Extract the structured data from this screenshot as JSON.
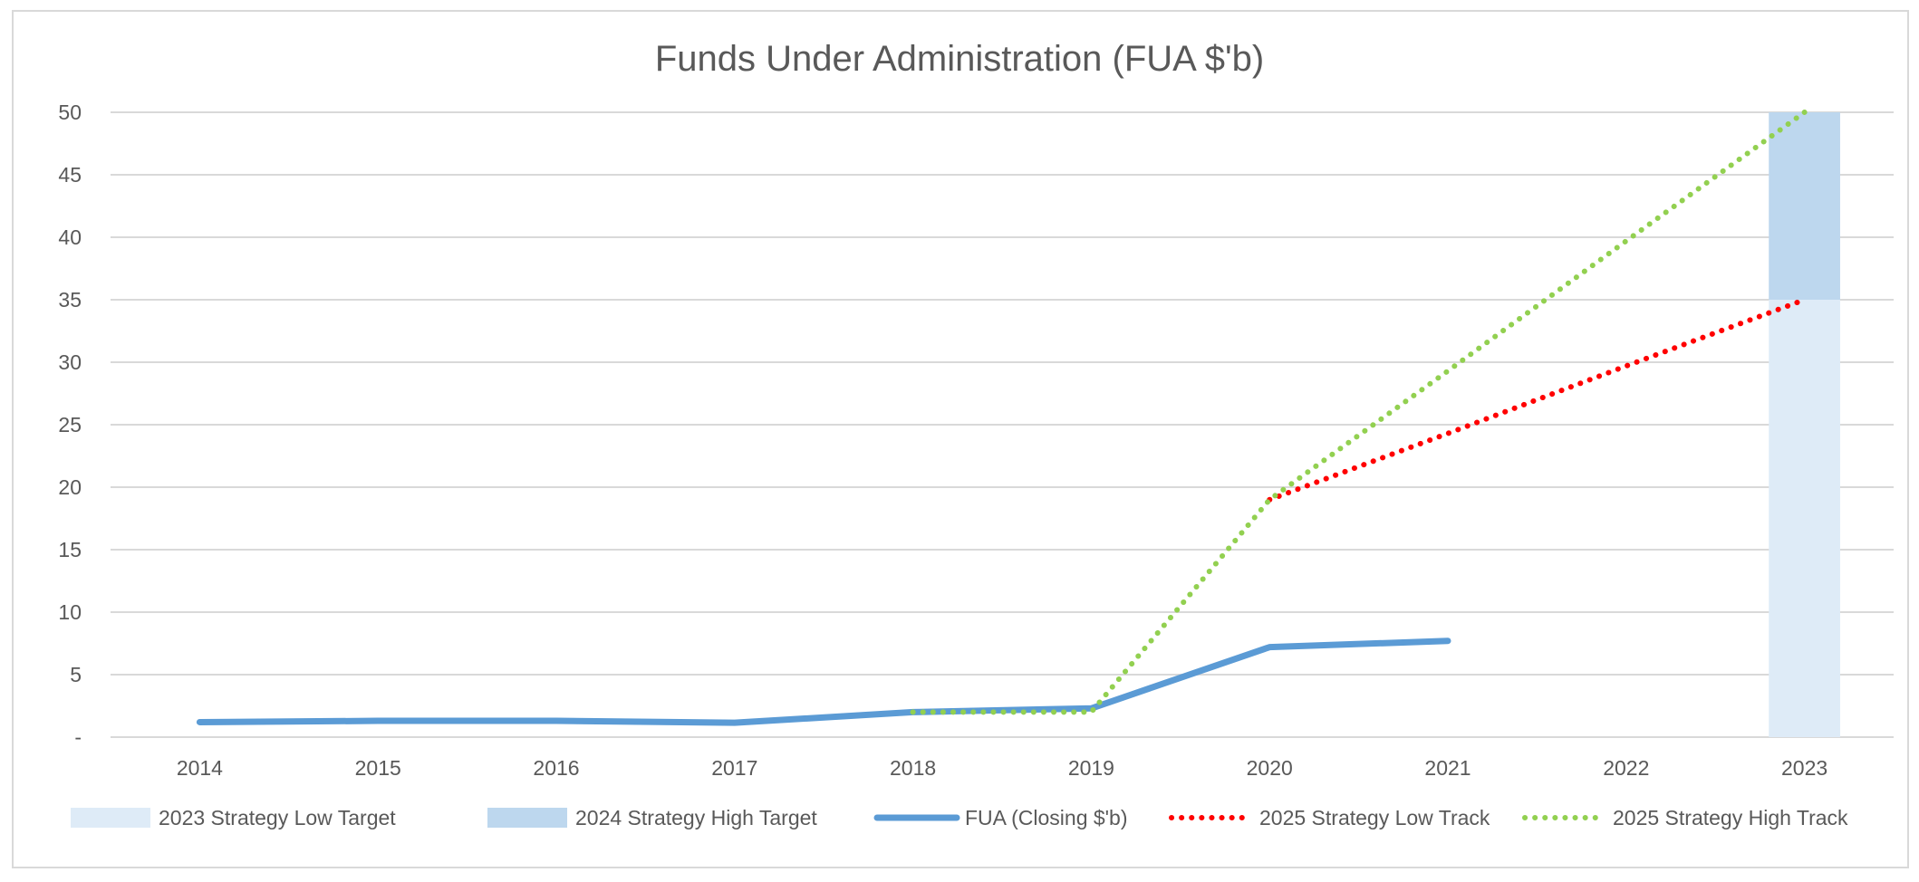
{
  "chart_data": {
    "type": "line",
    "title": "Funds Under Administration (FUA $'b)",
    "xlabel": "",
    "ylabel": "",
    "categories": [
      "2014",
      "2015",
      "2016",
      "2017",
      "2018",
      "2019",
      "2020",
      "2021",
      "2022",
      "2023"
    ],
    "ylim": [
      0,
      50
    ],
    "yticks": [
      0,
      5,
      10,
      15,
      20,
      25,
      30,
      35,
      40,
      45,
      50
    ],
    "ytick_labels": [
      "-",
      "5",
      "10",
      "15",
      "20",
      "25",
      "30",
      "35",
      "40",
      "45",
      "50"
    ],
    "grid": true,
    "legend_position": "bottom",
    "series": [
      {
        "name": "2023 Strategy Low Target",
        "kind": "bar",
        "color": "#DEEBF7",
        "values": [
          null,
          null,
          null,
          null,
          null,
          null,
          null,
          null,
          null,
          35
        ]
      },
      {
        "name": "2024 Strategy High Target",
        "kind": "bar-stacked",
        "color": "#BDD7EE",
        "values": [
          null,
          null,
          null,
          null,
          null,
          null,
          null,
          null,
          null,
          15
        ]
      },
      {
        "name": "FUA (Closing $'b)",
        "kind": "line",
        "color": "#5B9BD5",
        "values": [
          1.2,
          1.3,
          1.3,
          1.15,
          2.0,
          2.3,
          7.2,
          7.7,
          null,
          null
        ]
      },
      {
        "name": "2025 Strategy Low Track",
        "kind": "dotted",
        "color": "#FF0000",
        "values": [
          null,
          null,
          null,
          null,
          null,
          null,
          19,
          24.3,
          29.7,
          35
        ]
      },
      {
        "name": "2025 Strategy High Track",
        "kind": "dotted",
        "color": "#92D050",
        "values": [
          null,
          null,
          null,
          null,
          2.0,
          2.0,
          19,
          29.3,
          39.7,
          50
        ]
      }
    ]
  }
}
